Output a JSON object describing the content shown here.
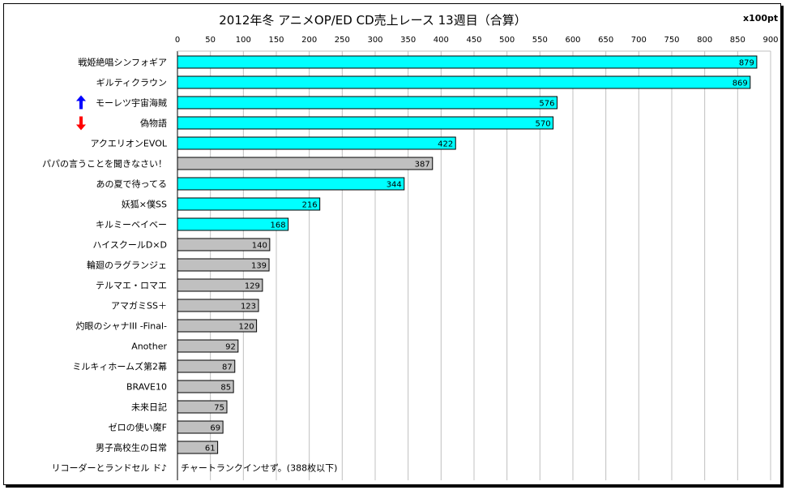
{
  "chart_data": {
    "type": "bar",
    "orientation": "horizontal",
    "title": "2012年冬 アニメOP/ED CD売上レース 13週目（合算）",
    "unit": "x100pt",
    "xlim": [
      0,
      900
    ],
    "xticks": [
      0,
      50,
      100,
      150,
      200,
      250,
      300,
      350,
      400,
      450,
      500,
      550,
      600,
      650,
      700,
      750,
      800,
      850,
      900
    ],
    "grid": "vertical",
    "categories": [
      "戦姫絶唱シンフォギア",
      "ギルティクラウン",
      "モーレツ宇宙海賊",
      "偽物語",
      "アクエリオンEVOL",
      "パパの言うことを聞きなさい！",
      "あの夏で待ってる",
      "妖狐×僕SS",
      "キルミーベイベー",
      "ハイスクールD×D",
      "輪廻のラグランジェ",
      "テルマエ・ロマエ",
      "アマガミSS＋",
      "灼眼のシャナIII -Final-",
      "Another",
      "ミルキィホームズ第2幕",
      "BRAVE10",
      "未来日記",
      "ゼロの使い魔F",
      "男子高校生の日常",
      "リコーダーとランドセル ド♪"
    ],
    "values": [
      879,
      869,
      576,
      570,
      422,
      387,
      344,
      216,
      168,
      140,
      139,
      129,
      123,
      120,
      92,
      87,
      85,
      75,
      69,
      61,
      null
    ],
    "highlight": [
      true,
      true,
      true,
      true,
      true,
      false,
      true,
      true,
      true,
      false,
      false,
      false,
      false,
      false,
      false,
      false,
      false,
      false,
      false,
      false,
      false
    ],
    "trend": [
      null,
      null,
      "up",
      "down",
      null,
      null,
      null,
      null,
      null,
      null,
      null,
      null,
      null,
      null,
      null,
      null,
      null,
      null,
      null,
      null,
      null
    ],
    "no_rank_note": "チャートランクインせず。(388枚以下)",
    "colors": {
      "highlight": "#00ffff",
      "normal": "#c0c0c0",
      "up": "#0000ff",
      "down": "#ff0000",
      "grid": "#c0c0c0"
    }
  }
}
